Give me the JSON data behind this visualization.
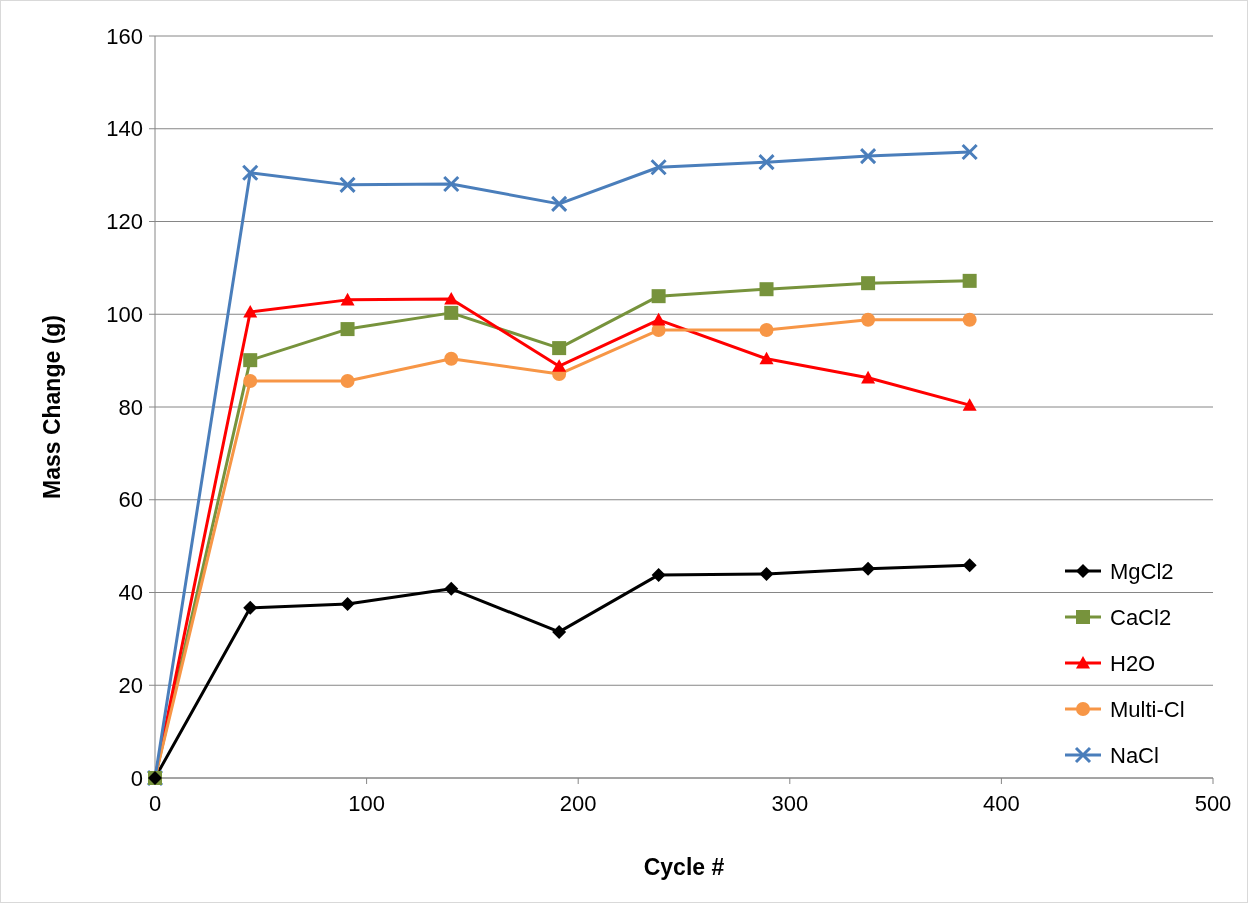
{
  "chart_data": {
    "type": "line",
    "xlabel": "Cycle #",
    "ylabel": "Mass Change (g)",
    "x": [
      0,
      45,
      91,
      140,
      191,
      238,
      289,
      337,
      385
    ],
    "xlim": [
      0,
      500
    ],
    "xticks": [
      0,
      100,
      200,
      300,
      400,
      500
    ],
    "ylim": [
      0,
      160
    ],
    "yticks": [
      0,
      20,
      40,
      60,
      80,
      100,
      120,
      140,
      160
    ],
    "grid": "y",
    "legend": "bottom right",
    "series": [
      {
        "name": "MgCl2",
        "color": "#000000",
        "marker": "diamond",
        "values": [
          0,
          36.7,
          37.5,
          40.8,
          31.5,
          43.8,
          44,
          45.1,
          45.9
        ]
      },
      {
        "name": "CaCl2",
        "color": "#77933c",
        "marker": "square",
        "values": [
          0,
          90.1,
          96.8,
          100.3,
          92.7,
          103.9,
          105.4,
          106.7,
          107.2
        ]
      },
      {
        "name": "H2O",
        "color": "#ff0000",
        "marker": "triangle",
        "values": [
          0,
          100.5,
          103.1,
          103.3,
          88.8,
          98.8,
          90.4,
          86.3,
          80.4
        ]
      },
      {
        "name": "Multi-Cl",
        "color": "#f79646",
        "marker": "circle",
        "values": [
          0,
          85.6,
          85.6,
          90.4,
          87.1,
          96.6,
          96.6,
          98.8,
          98.8
        ]
      },
      {
        "name": "NaCl",
        "color": "#4a7ebb",
        "marker": "cross",
        "values": [
          0,
          130.5,
          127.9,
          128.1,
          123.8,
          131.7,
          132.8,
          134.1,
          135
        ]
      }
    ]
  }
}
